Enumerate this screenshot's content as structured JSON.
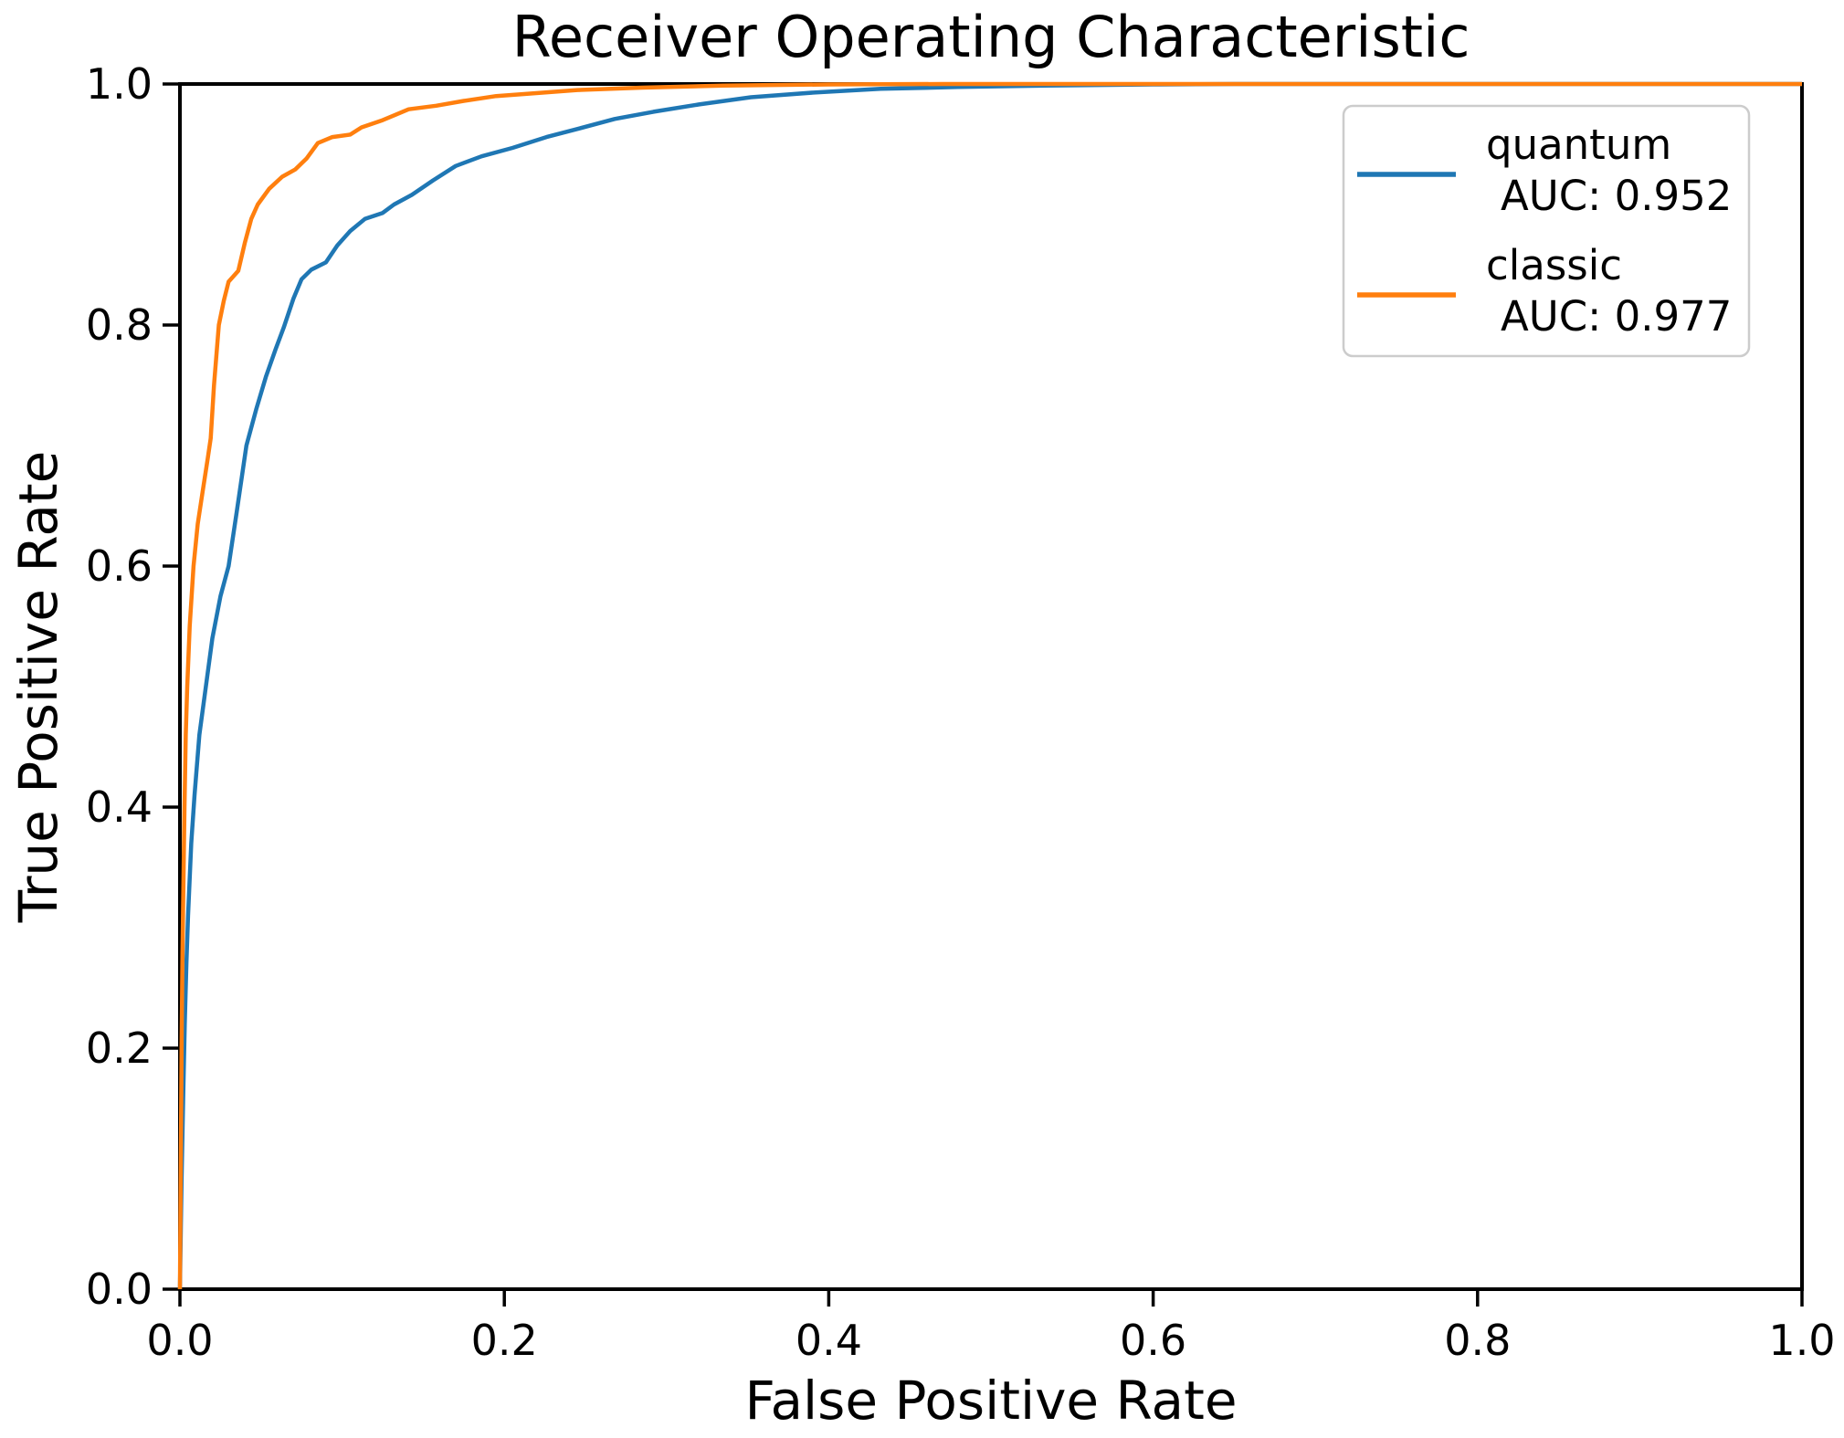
{
  "title": "Receiver Operating Characteristic",
  "axes": {
    "xlabel": "False Positive Rate",
    "ylabel": "True Positive Rate",
    "x_tick_labels": [
      "0.0",
      "0.2",
      "0.4",
      "0.6",
      "0.8",
      "1.0"
    ],
    "y_tick_labels": [
      "0.0",
      "0.2",
      "0.4",
      "0.6",
      "0.8",
      "1.0"
    ]
  },
  "legend": {
    "entries": [
      {
        "label": "quantum",
        "sublabel": " AUC: 0.952",
        "color": "#1f77b4"
      },
      {
        "label": "classic",
        "sublabel": " AUC: 0.977",
        "color": "#ff7f0e"
      }
    ]
  },
  "chart_data": {
    "type": "line",
    "title": "Receiver Operating Characteristic",
    "xlabel": "False Positive Rate",
    "ylabel": "True Positive Rate",
    "xlim": [
      0.0,
      1.0
    ],
    "ylim": [
      0.0,
      1.0
    ],
    "grid": false,
    "legend_position": "upper right",
    "series": [
      {
        "name": "quantum",
        "auc": 0.952,
        "color": "#1f77b4",
        "points": [
          [
            0.0,
            0.0
          ],
          [
            0.001,
            0.09
          ],
          [
            0.002,
            0.16
          ],
          [
            0.003,
            0.22
          ],
          [
            0.004,
            0.27
          ],
          [
            0.005,
            0.31
          ],
          [
            0.007,
            0.37
          ],
          [
            0.009,
            0.41
          ],
          [
            0.012,
            0.46
          ],
          [
            0.016,
            0.5
          ],
          [
            0.02,
            0.54
          ],
          [
            0.025,
            0.575
          ],
          [
            0.03,
            0.6
          ],
          [
            0.035,
            0.645
          ],
          [
            0.041,
            0.7
          ],
          [
            0.047,
            0.73
          ],
          [
            0.053,
            0.757
          ],
          [
            0.059,
            0.78
          ],
          [
            0.064,
            0.798
          ],
          [
            0.07,
            0.822
          ],
          [
            0.075,
            0.838
          ],
          [
            0.081,
            0.846
          ],
          [
            0.09,
            0.852
          ],
          [
            0.097,
            0.866
          ],
          [
            0.105,
            0.878
          ],
          [
            0.114,
            0.888
          ],
          [
            0.125,
            0.893
          ],
          [
            0.132,
            0.9
          ],
          [
            0.143,
            0.908
          ],
          [
            0.156,
            0.92
          ],
          [
            0.17,
            0.932
          ],
          [
            0.186,
            0.94
          ],
          [
            0.205,
            0.947
          ],
          [
            0.226,
            0.956
          ],
          [
            0.246,
            0.963
          ],
          [
            0.268,
            0.971
          ],
          [
            0.292,
            0.977
          ],
          [
            0.32,
            0.983
          ],
          [
            0.352,
            0.989
          ],
          [
            0.392,
            0.993
          ],
          [
            0.432,
            0.996
          ],
          [
            0.48,
            0.9975
          ],
          [
            0.54,
            0.9988
          ],
          [
            0.6,
            0.9996
          ],
          [
            0.65,
            1.0
          ],
          [
            1.0,
            1.0
          ]
        ]
      },
      {
        "name": "classic",
        "auc": 0.977,
        "color": "#ff7f0e",
        "points": [
          [
            0.0,
            0.0
          ],
          [
            0.0005,
            0.1
          ],
          [
            0.001,
            0.2
          ],
          [
            0.0016,
            0.28
          ],
          [
            0.0022,
            0.34
          ],
          [
            0.0028,
            0.4
          ],
          [
            0.0036,
            0.46
          ],
          [
            0.0045,
            0.5
          ],
          [
            0.006,
            0.55
          ],
          [
            0.0084,
            0.6
          ],
          [
            0.011,
            0.635
          ],
          [
            0.014,
            0.662
          ],
          [
            0.017,
            0.688
          ],
          [
            0.019,
            0.706
          ],
          [
            0.021,
            0.75
          ],
          [
            0.024,
            0.8
          ],
          [
            0.027,
            0.82
          ],
          [
            0.03,
            0.836
          ],
          [
            0.036,
            0.845
          ],
          [
            0.04,
            0.868
          ],
          [
            0.044,
            0.888
          ],
          [
            0.048,
            0.9
          ],
          [
            0.055,
            0.913
          ],
          [
            0.063,
            0.923
          ],
          [
            0.071,
            0.929
          ],
          [
            0.078,
            0.938
          ],
          [
            0.085,
            0.951
          ],
          [
            0.094,
            0.956
          ],
          [
            0.105,
            0.958
          ],
          [
            0.112,
            0.964
          ],
          [
            0.125,
            0.97
          ],
          [
            0.141,
            0.979
          ],
          [
            0.158,
            0.982
          ],
          [
            0.175,
            0.986
          ],
          [
            0.195,
            0.99
          ],
          [
            0.215,
            0.992
          ],
          [
            0.245,
            0.995
          ],
          [
            0.285,
            0.997
          ],
          [
            0.335,
            0.9987
          ],
          [
            0.4,
            0.9996
          ],
          [
            0.47,
            1.0
          ],
          [
            1.0,
            1.0
          ]
        ]
      }
    ]
  },
  "style_colors": {
    "spine": "#000000",
    "legend_border": "#cccccc",
    "background": "#ffffff"
  }
}
